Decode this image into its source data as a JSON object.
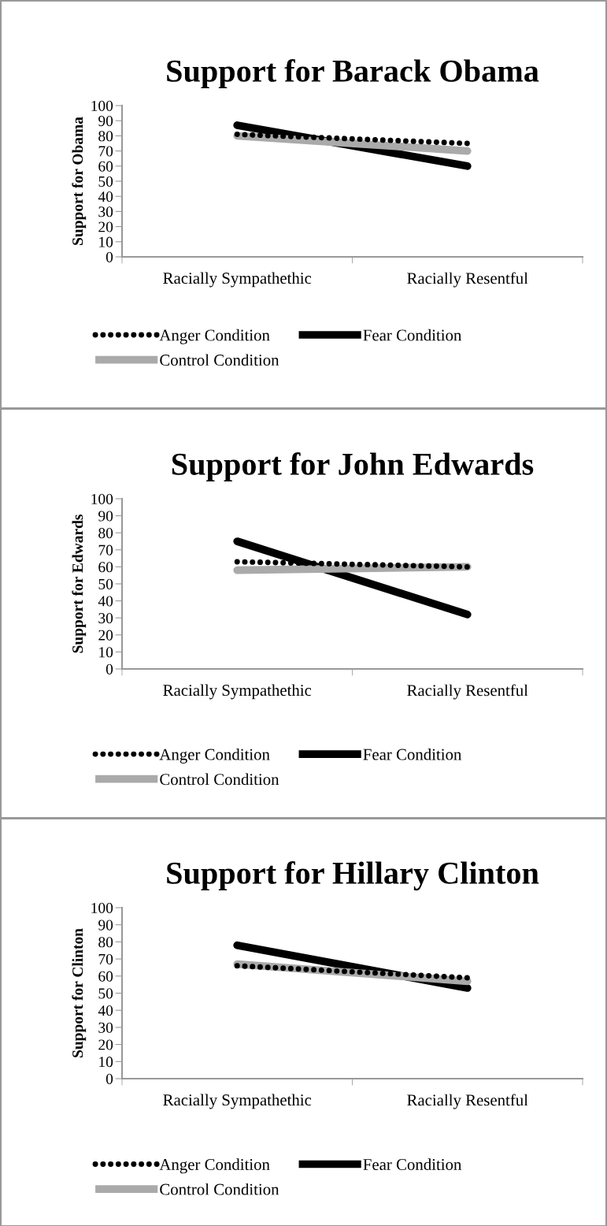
{
  "chart_data": [
    {
      "type": "line",
      "title": "Support for Barack Obama",
      "ylabel": "Support for Obama",
      "categories": [
        "Racially Sympathethic",
        "Racially Resentful"
      ],
      "ylim": [
        0,
        100
      ],
      "yticks": [
        0,
        10,
        20,
        30,
        40,
        50,
        60,
        70,
        80,
        90,
        100
      ],
      "grid": false,
      "legend": "bottom",
      "marker": "none",
      "series": [
        {
          "name": "Anger Condition",
          "color": "#000000",
          "values": [
            81,
            75
          ],
          "line_style": "dotted"
        },
        {
          "name": "Fear Condition",
          "color": "#000000",
          "values": [
            87,
            60
          ],
          "line_style": "solid"
        },
        {
          "name": "Control Condition",
          "color": "#aaaaaa",
          "values": [
            80,
            70
          ],
          "line_style": "solid"
        }
      ]
    },
    {
      "type": "line",
      "title": "Support for John Edwards",
      "ylabel": "Support for Edwards",
      "categories": [
        "Racially Sympathethic",
        "Racially Resentful"
      ],
      "ylim": [
        0,
        100
      ],
      "yticks": [
        0,
        10,
        20,
        30,
        40,
        50,
        60,
        70,
        80,
        90,
        100
      ],
      "grid": false,
      "legend": "bottom",
      "marker": "none",
      "series": [
        {
          "name": "Anger Condition",
          "color": "#000000",
          "values": [
            63,
            60
          ],
          "line_style": "dotted"
        },
        {
          "name": "Fear Condition",
          "color": "#000000",
          "values": [
            75,
            32
          ],
          "line_style": "solid"
        },
        {
          "name": "Control Condition",
          "color": "#aaaaaa",
          "values": [
            58,
            60
          ],
          "line_style": "solid"
        }
      ]
    },
    {
      "type": "line",
      "title": "Support for Hillary Clinton",
      "ylabel": "Support for Clinton",
      "categories": [
        "Racially Sympathethic",
        "Racially Resentful"
      ],
      "ylim": [
        0,
        100
      ],
      "yticks": [
        0,
        10,
        20,
        30,
        40,
        50,
        60,
        70,
        80,
        90,
        100
      ],
      "grid": false,
      "legend": "bottom",
      "marker": "none",
      "series": [
        {
          "name": "Anger Condition",
          "color": "#000000",
          "values": [
            66,
            59
          ],
          "line_style": "dotted"
        },
        {
          "name": "Fear Condition",
          "color": "#000000",
          "values": [
            78,
            53
          ],
          "line_style": "solid"
        },
        {
          "name": "Control Condition",
          "color": "#aaaaaa",
          "values": [
            67,
            57
          ],
          "line_style": "solid"
        }
      ]
    }
  ]
}
